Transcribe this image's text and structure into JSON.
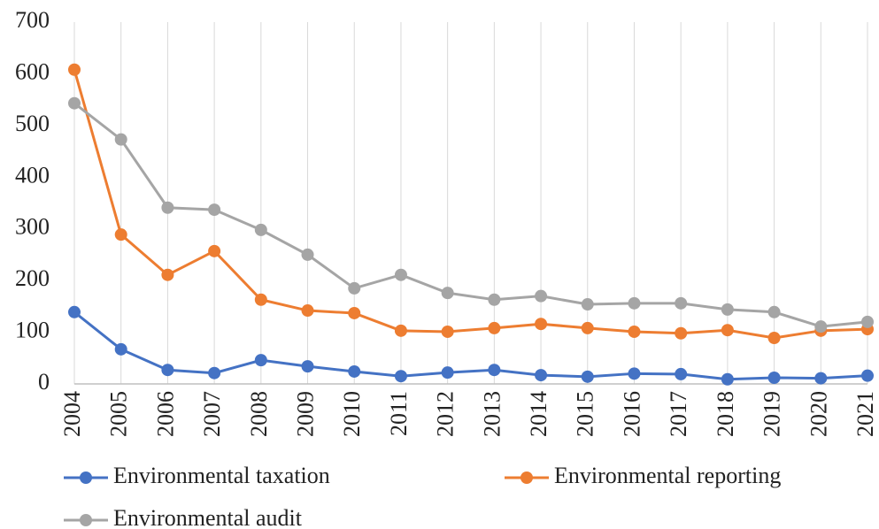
{
  "chart_data": {
    "type": "line",
    "categories": [
      "2004",
      "2005",
      "2006",
      "2007",
      "2008",
      "2009",
      "2010",
      "2011",
      "2012",
      "2013",
      "2014",
      "2015",
      "2016",
      "2017",
      "2018",
      "2019",
      "2020",
      "2021"
    ],
    "series": [
      {
        "name": "Environmental taxation",
        "color": "#4472c4",
        "values": [
          139,
          67,
          27,
          21,
          46,
          34,
          24,
          15,
          22,
          27,
          17,
          14,
          20,
          19,
          9,
          12,
          11,
          16
        ]
      },
      {
        "name": "Environmental reporting",
        "color": "#ed7d31",
        "values": [
          608,
          289,
          211,
          257,
          163,
          142,
          137,
          103,
          101,
          108,
          116,
          108,
          101,
          98,
          104,
          89,
          103,
          106
        ]
      },
      {
        "name": "Environmental audit",
        "color": "#a5a5a5",
        "values": [
          543,
          473,
          341,
          337,
          298,
          250,
          185,
          211,
          176,
          163,
          170,
          154,
          156,
          156,
          144,
          139,
          111,
          120
        ]
      }
    ],
    "ylim": [
      0,
      700
    ],
    "yticks": [
      0,
      100,
      200,
      300,
      400,
      500,
      600,
      700
    ],
    "grid": true,
    "legend": "bottom"
  }
}
